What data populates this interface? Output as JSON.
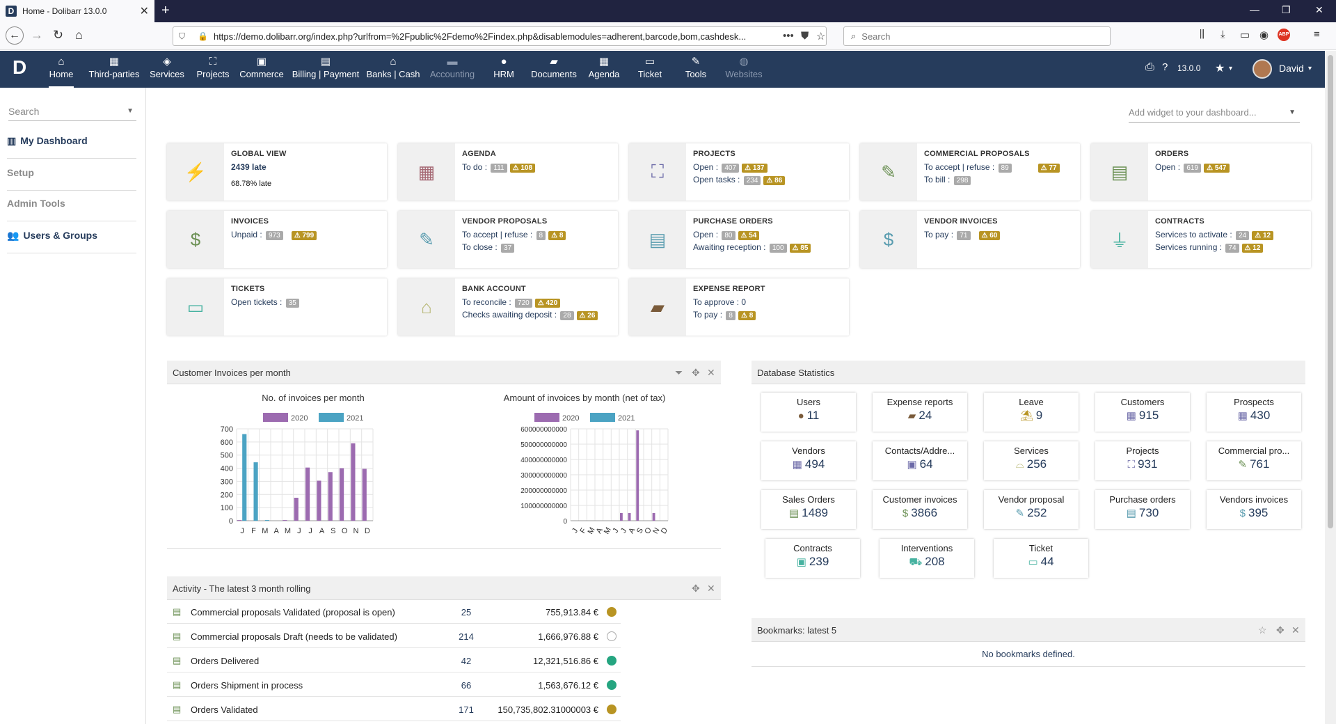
{
  "browser": {
    "tab_title": "Home - Dolibarr 13.0.0",
    "url": "https://demo.dolibarr.org/index.php?urlfrom=%2Fpublic%2Fdemo%2Findex.php&disablemodules=adherent,barcode,bom,cashdesk...",
    "search_placeholder": "Search"
  },
  "topmenu": {
    "items": [
      {
        "label": "Home",
        "icon": "home-icon"
      },
      {
        "label": "Third-parties",
        "icon": "building-icon"
      },
      {
        "label": "Services",
        "icon": "cube-icon"
      },
      {
        "label": "Projects",
        "icon": "sitemap-icon"
      },
      {
        "label": "Commerce",
        "icon": "suitcase-icon"
      },
      {
        "label": "Billing | Payment",
        "icon": "money-icon"
      },
      {
        "label": "Banks | Cash",
        "icon": "bank-icon"
      },
      {
        "label": "Accounting",
        "icon": "ledger-icon"
      },
      {
        "label": "HRM",
        "icon": "user-icon"
      },
      {
        "label": "Documents",
        "icon": "folder-icon"
      },
      {
        "label": "Agenda",
        "icon": "calendar-icon"
      },
      {
        "label": "Ticket",
        "icon": "ticket-icon"
      },
      {
        "label": "Tools",
        "icon": "wrench-icon"
      },
      {
        "label": "Websites",
        "icon": "globe-icon"
      }
    ],
    "version": "13.0.0",
    "user": "David"
  },
  "sidebar": {
    "search_placeholder": "Search",
    "items": [
      {
        "label": "My Dashboard"
      },
      {
        "label": "Setup"
      },
      {
        "label": "Admin Tools"
      },
      {
        "label": "Users & Groups"
      }
    ]
  },
  "dashboard": {
    "add_widget_placeholder": "Add widget to your dashboard...",
    "boxes": [
      {
        "title": "Global view",
        "l1": "2439 late",
        "l2": "68.78% late"
      },
      {
        "title": "Agenda",
        "l1": "To do :",
        "b1": "111",
        "w1": "108"
      },
      {
        "title": "Projects",
        "l1": "Open :",
        "b1": "407",
        "w1": "137",
        "l2": "Open tasks :",
        "b2": "234",
        "w2": "86"
      },
      {
        "title": "Commercial proposals",
        "l1": "To accept | refuse :",
        "b1": "89",
        "w1": "77",
        "l2": "To bill :",
        "b2": "298"
      },
      {
        "title": "Orders",
        "l1": "Open :",
        "b1": "619",
        "w1": "547"
      },
      {
        "title": "Invoices",
        "l1": "Unpaid :",
        "b1": "973",
        "w1": "799"
      },
      {
        "title": "Vendor proposals",
        "l1": "To accept | refuse :",
        "b1": "8",
        "w1": "8",
        "l2": "To close :",
        "b2": "37"
      },
      {
        "title": "Purchase orders",
        "l1": "Open :",
        "b1": "80",
        "w1": "54",
        "l2": "Awaiting reception :",
        "b2": "100",
        "w2": "85"
      },
      {
        "title": "Vendor invoices",
        "l1": "To pay :",
        "b1": "71",
        "w1": "60"
      },
      {
        "title": "Contracts",
        "l1": "Services to activate :",
        "b1": "24",
        "w1": "12",
        "l2": "Services running :",
        "b2": "74",
        "w2": "12"
      },
      {
        "title": "Tickets",
        "l1": "Open tickets :",
        "b1": "35"
      },
      {
        "title": "Bank account",
        "l1": "To reconcile :",
        "b1": "720",
        "w1": "420",
        "l2": "Checks awaiting deposit :",
        "b2": "28",
        "w2": "26"
      },
      {
        "title": "Expense report",
        "l1": "To approve : 0",
        "l2": "To pay :",
        "b2": "8",
        "w2": "8"
      }
    ]
  },
  "invoices_panel": {
    "title": "Customer Invoices per month"
  },
  "chart_data": [
    {
      "type": "bar",
      "title": "No. of invoices per month",
      "categories": [
        "J",
        "F",
        "M",
        "A",
        "M",
        "J",
        "J",
        "A",
        "S",
        "O",
        "N",
        "D"
      ],
      "series": [
        {
          "name": "2020",
          "color": "#9c6bb0",
          "values": [
            5,
            0,
            0,
            0,
            5,
            175,
            405,
            305,
            370,
            400,
            590,
            395
          ]
        },
        {
          "name": "2021",
          "color": "#4ba3c3",
          "values": [
            660,
            445,
            5,
            0,
            0,
            0,
            0,
            0,
            0,
            0,
            0,
            0
          ]
        }
      ],
      "ylim": [
        0,
        700
      ],
      "yticks": [
        "700",
        "600",
        "500",
        "400",
        "300",
        "200",
        "100",
        "0"
      ]
    },
    {
      "type": "bar",
      "title": "Amount of invoices by month (net of tax)",
      "categories": [
        "J",
        "F",
        "M",
        "A",
        "M",
        "J",
        "J",
        "A",
        "S",
        "O",
        "N",
        "D"
      ],
      "series": [
        {
          "name": "2020",
          "color": "#9c6bb0",
          "values": [
            0,
            0,
            0,
            0,
            0,
            0,
            50000000000,
            50000000000,
            590000000000,
            0,
            50000000000,
            0
          ]
        },
        {
          "name": "2021",
          "color": "#4ba3c3",
          "values": [
            0,
            0,
            0,
            0,
            0,
            0,
            0,
            0,
            0,
            0,
            0,
            0
          ]
        }
      ],
      "ylim": [
        0,
        600000000000
      ],
      "yticks": [
        "600000000000",
        "500000000000",
        "400000000000",
        "300000000000",
        "200000000000",
        "100000000000",
        "0"
      ]
    }
  ],
  "activity": {
    "title": "Activity - The latest 3 month rolling",
    "rows": [
      {
        "label": "Commercial proposals Validated (proposal is open)",
        "count": "25",
        "amount": "755,913.84 €",
        "status_color": "#b89423"
      },
      {
        "label": "Commercial proposals Draft (needs to be validated)",
        "count": "214",
        "amount": "1,666,976.88 €",
        "status_color": "#ffffff"
      },
      {
        "label": "Orders Delivered",
        "count": "42",
        "amount": "12,321,516.86 €",
        "status_color": "#25a580"
      },
      {
        "label": "Orders Shipment in process",
        "count": "66",
        "amount": "1,563,676.12 €",
        "status_color": "#25a580"
      },
      {
        "label": "Orders Validated",
        "count": "171",
        "amount": "150,735,802.31000003 €",
        "status_color": "#b89423"
      }
    ]
  },
  "stats": {
    "title": "Database Statistics",
    "cards": [
      {
        "label": "Users",
        "value": "11",
        "icon": "user-icon"
      },
      {
        "label": "Expense reports",
        "value": "24",
        "icon": "wallet-icon"
      },
      {
        "label": "Leave",
        "value": "9",
        "icon": "beach-icon"
      },
      {
        "label": "Customers",
        "value": "915",
        "icon": "building-icon"
      },
      {
        "label": "Prospects",
        "value": "430",
        "icon": "building-icon"
      },
      {
        "label": "Vendors",
        "value": "494",
        "icon": "building-icon"
      },
      {
        "label": "Contacts/Addre...",
        "value": "64",
        "icon": "contact-icon"
      },
      {
        "label": "Services",
        "value": "256",
        "icon": "concierge-icon"
      },
      {
        "label": "Projects",
        "value": "931",
        "icon": "sitemap-icon"
      },
      {
        "label": "Commercial pro...",
        "value": "761",
        "icon": "proposal-icon"
      },
      {
        "label": "Sales Orders",
        "value": "1489",
        "icon": "order-icon"
      },
      {
        "label": "Customer invoices",
        "value": "3866",
        "icon": "invoice-icon"
      },
      {
        "label": "Vendor proposal",
        "value": "252",
        "icon": "proposal-icon"
      },
      {
        "label": "Purchase orders",
        "value": "730",
        "icon": "order-icon"
      },
      {
        "label": "Vendors invoices",
        "value": "395",
        "icon": "invoice-icon"
      },
      {
        "label": "Contracts",
        "value": "239",
        "icon": "suitcase-icon"
      },
      {
        "label": "Interventions",
        "value": "208",
        "icon": "ambulance-icon"
      },
      {
        "label": "Ticket",
        "value": "44",
        "icon": "ticket-icon"
      }
    ]
  },
  "bookmarks": {
    "title": "Bookmarks: latest 5",
    "empty": "No bookmarks defined."
  }
}
